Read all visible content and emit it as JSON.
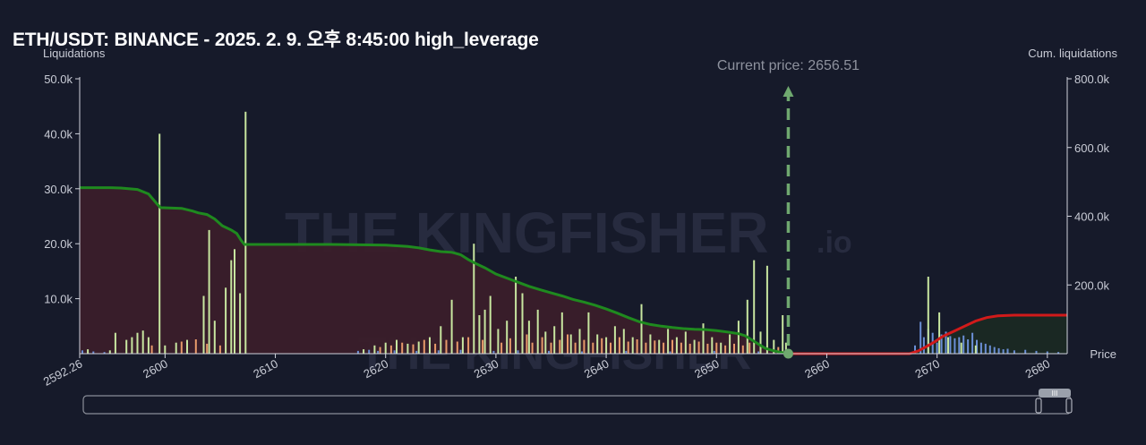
{
  "title": "ETH/USDT: BINANCE - 2025. 2. 9. 오후 8:45:00 high_leverage",
  "left_axis_label": "Liquidations",
  "right_axis_label": "Cum. liquidations",
  "x_axis_label": "Price",
  "current_price_label": "Current price: 2656.51",
  "watermark": {
    "main": "THE KINGFISHER",
    "suffix": ".io"
  },
  "colors": {
    "background": "#161a2a",
    "short_cum_area": "#3a1d2a",
    "long_cum_line": "#1f8a1f",
    "short_cum_line": "#d11a1a",
    "current_price_line": "#6fa86f",
    "bar_green": "#c8e6a0",
    "bar_orange": "#e89a6a",
    "bar_blue": "#6b8fd6"
  },
  "chart_data": {
    "type": "bar",
    "xlim": [
      2592.26,
      2681.8
    ],
    "x_ticks": [
      "2592.26",
      "2600",
      "2610",
      "2620",
      "2630",
      "2640",
      "2650",
      "2660",
      "2670",
      "2680"
    ],
    "x_tick_values": [
      2592.26,
      2600,
      2610,
      2620,
      2630,
      2640,
      2650,
      2660,
      2670,
      2680
    ],
    "left_ylim": [
      0,
      50000
    ],
    "left_ticks": [
      "10.0k",
      "20.0k",
      "30.0k",
      "40.0k",
      "50.0k"
    ],
    "left_tick_values": [
      10000,
      20000,
      30000,
      40000,
      50000
    ],
    "right_ylim": [
      0,
      800000
    ],
    "right_ticks": [
      "200.0k",
      "400.0k",
      "600.0k",
      "800.0k"
    ],
    "right_tick_values": [
      200000,
      400000,
      600000,
      800000
    ],
    "current_price": 2656.51,
    "bars_green": [
      [
        2593,
        800
      ],
      [
        2595,
        600
      ],
      [
        2595.5,
        3800
      ],
      [
        2596.5,
        2500
      ],
      [
        2597,
        3000
      ],
      [
        2597.5,
        3800
      ],
      [
        2598,
        4200
      ],
      [
        2598.5,
        3000
      ],
      [
        2599.5,
        40000
      ],
      [
        2600,
        1500
      ],
      [
        2601,
        2000
      ],
      [
        2602,
        2500
      ],
      [
        2603.5,
        10500
      ],
      [
        2604,
        22500
      ],
      [
        2604.5,
        6000
      ],
      [
        2605.5,
        12000
      ],
      [
        2606,
        17000
      ],
      [
        2606.3,
        19000
      ],
      [
        2606.8,
        11000
      ],
      [
        2607.3,
        44000
      ],
      [
        2618,
        800
      ],
      [
        2619,
        1500
      ],
      [
        2620,
        2000
      ],
      [
        2621,
        2500
      ],
      [
        2622,
        1800
      ],
      [
        2623,
        2200
      ],
      [
        2624,
        3000
      ],
      [
        2625,
        5000
      ],
      [
        2626,
        9800
      ],
      [
        2627,
        3000
      ],
      [
        2628,
        20000
      ],
      [
        2628.5,
        7000
      ],
      [
        2629,
        8000
      ],
      [
        2629.5,
        10500
      ],
      [
        2630.2,
        4500
      ],
      [
        2631,
        6000
      ],
      [
        2631.8,
        14000
      ],
      [
        2632.4,
        11000
      ],
      [
        2633,
        6000
      ],
      [
        2633.8,
        8000
      ],
      [
        2634.5,
        4000
      ],
      [
        2635.3,
        5000
      ],
      [
        2636,
        7500
      ],
      [
        2636.8,
        3500
      ],
      [
        2637.6,
        4500
      ],
      [
        2638.4,
        7500
      ],
      [
        2639.2,
        3500
      ],
      [
        2640,
        3000
      ],
      [
        2640.8,
        5000
      ],
      [
        2641.6,
        4500
      ],
      [
        2642.4,
        3000
      ],
      [
        2643.2,
        9000
      ],
      [
        2644,
        3500
      ],
      [
        2644.8,
        2500
      ],
      [
        2645.6,
        4500
      ],
      [
        2646.4,
        3000
      ],
      [
        2647.2,
        4000
      ],
      [
        2648,
        2500
      ],
      [
        2648.8,
        5500
      ],
      [
        2649.6,
        3000
      ],
      [
        2650.4,
        2000
      ],
      [
        2651.2,
        3500
      ],
      [
        2652,
        6000
      ],
      [
        2652.8,
        9800
      ],
      [
        2653.4,
        17000
      ],
      [
        2654,
        4000
      ],
      [
        2654.6,
        16000
      ],
      [
        2655.2,
        2500
      ],
      [
        2656,
        7000
      ],
      [
        2656.3,
        2000
      ]
    ],
    "bars_orange": [
      [
        2598.8,
        1500
      ],
      [
        2601.5,
        2200
      ],
      [
        2602.8,
        2600
      ],
      [
        2603.8,
        1800
      ],
      [
        2605,
        1500
      ],
      [
        2619.5,
        1200
      ],
      [
        2620.5,
        1500
      ],
      [
        2621.5,
        2000
      ],
      [
        2622.5,
        1700
      ],
      [
        2623.5,
        2500
      ],
      [
        2624.5,
        1800
      ],
      [
        2625.5,
        2500
      ],
      [
        2626.5,
        2200
      ],
      [
        2627.5,
        3000
      ],
      [
        2628.8,
        2500
      ],
      [
        2630.5,
        2000
      ],
      [
        2631.3,
        2800
      ],
      [
        2632.8,
        3500
      ],
      [
        2633.3,
        2000
      ],
      [
        2634.2,
        3000
      ],
      [
        2635,
        2000
      ],
      [
        2635.8,
        2500
      ],
      [
        2636.5,
        3500
      ],
      [
        2637.2,
        2000
      ],
      [
        2638,
        2500
      ],
      [
        2638.8,
        2000
      ],
      [
        2639.6,
        2800
      ],
      [
        2640.4,
        2000
      ],
      [
        2641.2,
        3000
      ],
      [
        2642,
        2200
      ],
      [
        2642.8,
        2600
      ],
      [
        2643.6,
        2000
      ],
      [
        2644.4,
        2400
      ],
      [
        2645.2,
        2000
      ],
      [
        2646,
        2500
      ],
      [
        2646.8,
        2000
      ],
      [
        2647.6,
        1800
      ],
      [
        2648.4,
        2200
      ],
      [
        2649.2,
        1800
      ],
      [
        2650,
        2000
      ],
      [
        2650.8,
        1500
      ],
      [
        2651.6,
        1800
      ],
      [
        2652.4,
        1500
      ],
      [
        2653,
        2000
      ],
      [
        2655.6,
        1200
      ]
    ],
    "bars_blue": [
      [
        2592.5,
        600
      ],
      [
        2593.5,
        400
      ],
      [
        2594.5,
        300
      ],
      [
        2617.5,
        500
      ],
      [
        2618.5,
        700
      ],
      [
        2619.3,
        500
      ],
      [
        2620.8,
        600
      ],
      [
        2622.8,
        500
      ],
      [
        2624.8,
        600
      ],
      [
        2626.8,
        700
      ],
      [
        2629.8,
        500
      ],
      [
        2632,
        600
      ],
      [
        2634.8,
        500
      ],
      [
        2637.8,
        400
      ],
      [
        2641.8,
        500
      ],
      [
        2645.8,
        400
      ],
      [
        2649.8,
        500
      ],
      [
        2653.8,
        400
      ],
      [
        2668,
        1500
      ],
      [
        2668.5,
        5800
      ],
      [
        2668.8,
        3000
      ],
      [
        2669.2,
        4500
      ],
      [
        2669.6,
        3800
      ],
      [
        2670,
        2000
      ],
      [
        2670.4,
        3500
      ],
      [
        2670.8,
        4000
      ],
      [
        2671.2,
        3200
      ],
      [
        2671.6,
        2800
      ],
      [
        2672,
        3000
      ],
      [
        2672.4,
        3300
      ],
      [
        2672.8,
        2600
      ],
      [
        2673.2,
        3800
      ],
      [
        2673.6,
        2500
      ],
      [
        2674,
        2000
      ],
      [
        2674.4,
        1800
      ],
      [
        2674.8,
        1500
      ],
      [
        2675.2,
        1200
      ],
      [
        2675.6,
        1000
      ],
      [
        2676,
        800
      ],
      [
        2676.4,
        900
      ],
      [
        2677,
        600
      ],
      [
        2678,
        700
      ],
      [
        2679,
        500
      ],
      [
        2680,
        400
      ],
      [
        2681,
        300
      ]
    ],
    "bars_green_right": [
      [
        2669.2,
        14000
      ],
      [
        2670.2,
        7500
      ],
      [
        2671,
        3000
      ],
      [
        2672.2,
        2000
      ],
      [
        2673.5,
        1500
      ]
    ],
    "cum_long_line": [
      [
        2592.26,
        483000
      ],
      [
        2595,
        483000
      ],
      [
        2596,
        482000
      ],
      [
        2597.5,
        478000
      ],
      [
        2598.5,
        465000
      ],
      [
        2599.3,
        435000
      ],
      [
        2599.6,
        425000
      ],
      [
        2601.5,
        423000
      ],
      [
        2602.5,
        415000
      ],
      [
        2603,
        410000
      ],
      [
        2603.8,
        405000
      ],
      [
        2604.5,
        392000
      ],
      [
        2605.2,
        372000
      ],
      [
        2606,
        360000
      ],
      [
        2606.5,
        350000
      ],
      [
        2606.9,
        330000
      ],
      [
        2607.2,
        318000
      ],
      [
        2607.6,
        318000
      ],
      [
        2610,
        318000
      ],
      [
        2615,
        318000
      ],
      [
        2620,
        316000
      ],
      [
        2622,
        312000
      ],
      [
        2623,
        308000
      ],
      [
        2624,
        302000
      ],
      [
        2625,
        297000
      ],
      [
        2626,
        295000
      ],
      [
        2626.8,
        288000
      ],
      [
        2627.5,
        274000
      ],
      [
        2628.2,
        262000
      ],
      [
        2629,
        250000
      ],
      [
        2630,
        232000
      ],
      [
        2631,
        220000
      ],
      [
        2632,
        208000
      ],
      [
        2633,
        196000
      ],
      [
        2634,
        186000
      ],
      [
        2635,
        177000
      ],
      [
        2636,
        168000
      ],
      [
        2637,
        158000
      ],
      [
        2638,
        150000
      ],
      [
        2639,
        141000
      ],
      [
        2640,
        130000
      ],
      [
        2641,
        118000
      ],
      [
        2642,
        105000
      ],
      [
        2643,
        93000
      ],
      [
        2644,
        85000
      ],
      [
        2645,
        80000
      ],
      [
        2646,
        76000
      ],
      [
        2647,
        73000
      ],
      [
        2648,
        71000
      ],
      [
        2649,
        70000
      ],
      [
        2650,
        67000
      ],
      [
        2651,
        63000
      ],
      [
        2652,
        58000
      ],
      [
        2652.6,
        52000
      ],
      [
        2653.2,
        40000
      ],
      [
        2653.8,
        28000
      ],
      [
        2654.4,
        16000
      ],
      [
        2655,
        10000
      ],
      [
        2655.8,
        4000
      ],
      [
        2656.51,
        0
      ]
    ],
    "cum_short_line": [
      [
        2656.51,
        0
      ],
      [
        2660,
        0
      ],
      [
        2664,
        0
      ],
      [
        2667.5,
        0
      ],
      [
        2668.3,
        8000
      ],
      [
        2669,
        20000
      ],
      [
        2669.8,
        35000
      ],
      [
        2670.5,
        50000
      ],
      [
        2671.5,
        65000
      ],
      [
        2672.5,
        80000
      ],
      [
        2673.5,
        95000
      ],
      [
        2674.5,
        105000
      ],
      [
        2675.5,
        110000
      ],
      [
        2677,
        112000
      ],
      [
        2679,
        112000
      ],
      [
        2681.8,
        112000
      ]
    ]
  },
  "scrollbar": {
    "handle_glyph": "III"
  }
}
